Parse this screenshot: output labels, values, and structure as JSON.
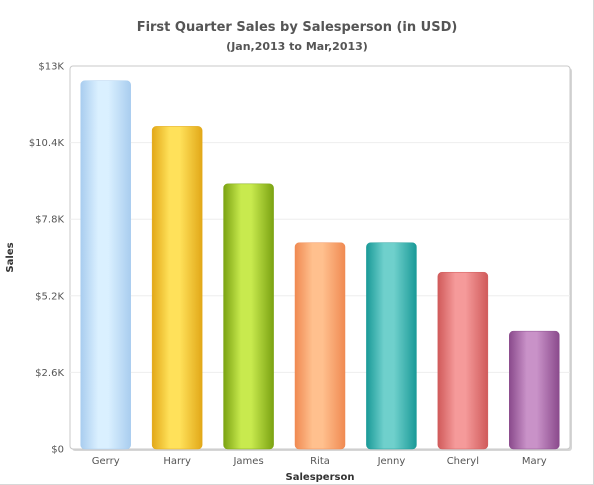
{
  "chart_data": {
    "type": "bar",
    "title": "First Quarter Sales by Salesperson (in USD)",
    "subtitle": "(Jan,2013 to Mar,2013)",
    "xlabel": "Salesperson",
    "ylabel": "Sales",
    "categories": [
      "Gerry",
      "Harry",
      "James",
      "Rita",
      "Jenny",
      "Cheryl",
      "Mary"
    ],
    "values": [
      12500,
      10950,
      9000,
      7000,
      7000,
      6000,
      4000
    ],
    "ylim": [
      0,
      13000
    ],
    "yticks": [
      0,
      2600,
      5200,
      7800,
      10400,
      13000
    ],
    "ytick_labels": [
      "$0",
      "$2.6K",
      "$5.2K",
      "$7.8K",
      "$10.4K",
      "$13K"
    ],
    "grid": true,
    "bar_colors": [
      [
        "#a9cdef",
        "#daf0ff"
      ],
      [
        "#e2a818",
        "#ffe15a"
      ],
      [
        "#7ba312",
        "#c8ea4e"
      ],
      [
        "#f08a52",
        "#ffc08e"
      ],
      [
        "#1a9a98",
        "#6fd0cc"
      ],
      [
        "#d05a5a",
        "#f59a9a"
      ],
      [
        "#8a4a8c",
        "#c992c8"
      ]
    ]
  }
}
